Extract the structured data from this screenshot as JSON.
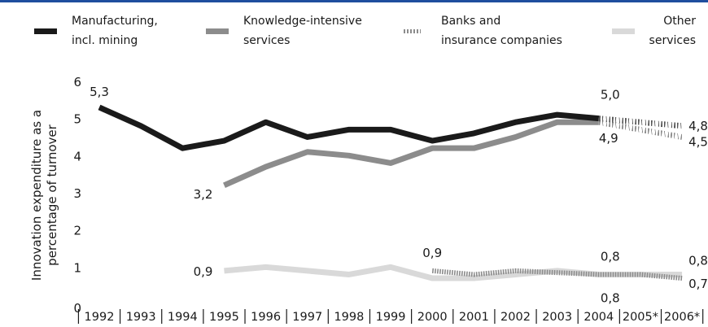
{
  "chart_data": {
    "type": "line",
    "title": "",
    "ylabel": "Innovation expenditure as a percentage of turnover",
    "ylabel_lines": [
      "Innovation expenditure as a",
      "percentage of turnover"
    ],
    "ylim": [
      0,
      6
    ],
    "yticks": [
      "0",
      "1",
      "2",
      "3",
      "4",
      "5",
      "6"
    ],
    "categories": [
      "1992",
      "1993",
      "1994",
      "1995",
      "1996",
      "1997",
      "1998",
      "1999",
      "2000",
      "2001",
      "2002",
      "2003",
      "2004",
      "2005*",
      "2006*"
    ],
    "legend_position": "top",
    "grid": false,
    "series": [
      {
        "name": "Manufacturing, incl. mining",
        "legend_lines": [
          "Manufacturing,",
          "incl. mining"
        ],
        "color": "#1a1a1a",
        "style": "solid-then-dotted-forecast",
        "values": [
          5.3,
          4.8,
          4.2,
          4.4,
          4.9,
          4.5,
          4.7,
          4.7,
          4.4,
          4.6,
          4.9,
          5.1,
          5.0,
          4.9,
          4.8
        ]
      },
      {
        "name": "Knowledge-intensive services",
        "legend_lines": [
          "Knowledge-intensive",
          "services"
        ],
        "color": "#8c8c8c",
        "style": "solid-then-dotted-forecast",
        "values": [
          null,
          null,
          null,
          3.2,
          3.7,
          4.1,
          4.0,
          3.8,
          4.2,
          4.2,
          4.5,
          4.9,
          4.9,
          4.7,
          4.5
        ]
      },
      {
        "name": "Banks and insurance companies",
        "legend_lines": [
          "Banks and",
          "insurance companies"
        ],
        "color": "#8c8c8c",
        "style": "dotted",
        "values": [
          null,
          null,
          null,
          null,
          null,
          null,
          null,
          null,
          0.9,
          0.8,
          0.9,
          0.85,
          0.8,
          0.8,
          0.7
        ]
      },
      {
        "name": "Other services",
        "legend_lines": [
          "Other",
          "services"
        ],
        "color": "#d9d9d9",
        "style": "solid",
        "values": [
          null,
          null,
          null,
          0.9,
          1.0,
          0.9,
          0.8,
          1.0,
          0.7,
          0.7,
          0.8,
          0.9,
          0.8,
          0.8,
          0.8
        ]
      }
    ],
    "data_labels": [
      {
        "text": "5,3",
        "series": 0,
        "x": "1992",
        "y": 5.3
      },
      {
        "text": "3,2",
        "series": 1,
        "x": "1995",
        "y": 3.2
      },
      {
        "text": "0,9",
        "series": 3,
        "x": "1995",
        "y": 0.9
      },
      {
        "text": "0,9",
        "series": 2,
        "x": "2000",
        "y": 0.9
      },
      {
        "text": "5,0",
        "series": 0,
        "x": "2004",
        "y": 5.0
      },
      {
        "text": "4,9",
        "series": 1,
        "x": "2004",
        "y": 4.9
      },
      {
        "text": "0,8",
        "series": 2,
        "x": "2004",
        "y": 0.8
      },
      {
        "text": "0,8",
        "series": 3,
        "x": "2004",
        "y": 0.8
      },
      {
        "text": "4,8",
        "series": 0,
        "x": "2006*",
        "y": 4.8
      },
      {
        "text": "4,5",
        "series": 1,
        "x": "2006*",
        "y": 4.5
      },
      {
        "text": "0,8",
        "series": 3,
        "x": "2006*",
        "y": 0.8
      },
      {
        "text": "0,7",
        "series": 2,
        "x": "2006*",
        "y": 0.7
      }
    ]
  }
}
